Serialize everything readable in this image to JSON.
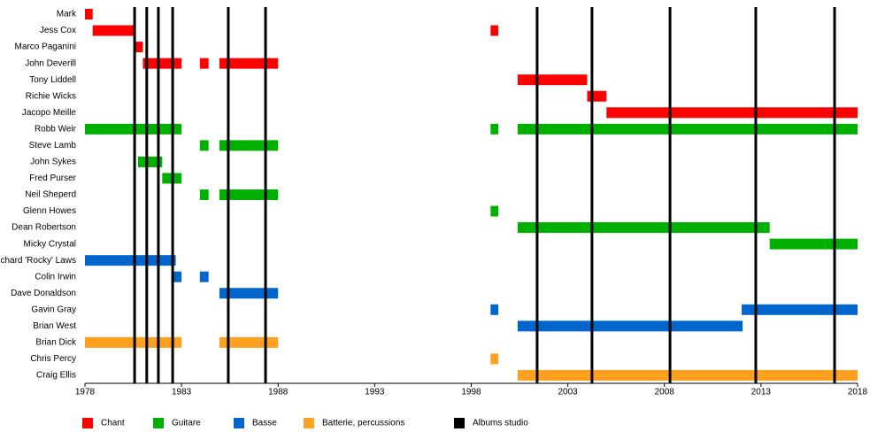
{
  "chart_data": {
    "type": "timeline",
    "categories": [
      "Mark",
      "Jess Cox",
      "Marco Paganini",
      "John Deverill",
      "Tony Liddell",
      "Richie Wicks",
      "Jacopo Meille",
      "Robb Weir",
      "Steve Lamb",
      "John Sykes",
      "Fred Purser",
      "Neil Sheperd",
      "Glenn Howes",
      "Dean Robertson",
      "Micky Crystal",
      "Richard 'Rocky' Laws",
      "Colin Irwin",
      "Dave Donaldson",
      "Gavin Gray",
      "Brian West",
      "Brian Dick",
      "Chris Percy",
      "Craig Ellis"
    ],
    "series": [
      {
        "name": "Chant",
        "color": "#ff0000",
        "values": [
          [
            [
              1978,
              1978.4
            ]
          ],
          [
            [
              1978.4,
              1980.6
            ],
            [
              1999,
              1999.4
            ]
          ],
          [
            [
              1980.6,
              1981
            ]
          ],
          [
            [
              1981,
              1983
            ],
            [
              1983.95,
              1984.4
            ],
            [
              1984.96,
              1988
            ]
          ],
          [
            [
              2000.4,
              2004
            ]
          ],
          [
            [
              2004,
              2005
            ]
          ],
          [
            [
              2005,
              2018
            ]
          ],
          null,
          null,
          null,
          null,
          null,
          null,
          null,
          null,
          null,
          null,
          null,
          null,
          null,
          null,
          null,
          null
        ]
      },
      {
        "name": "Guitare",
        "color": "#00b000",
        "values": [
          null,
          null,
          null,
          null,
          null,
          null,
          null,
          [
            [
              1978,
              1983
            ],
            [
              1999,
              1999.4
            ],
            [
              2000.4,
              2018
            ]
          ],
          [
            [
              1983.95,
              1984.4
            ],
            [
              1984.96,
              1988
            ]
          ],
          [
            [
              1980.75,
              1982
            ]
          ],
          [
            [
              1982,
              1983
            ]
          ],
          [
            [
              1983.95,
              1984.4
            ],
            [
              1984.96,
              1988
            ]
          ],
          [
            [
              1999,
              1999.4
            ]
          ],
          [
            [
              2000.4,
              2013.45
            ]
          ],
          [
            [
              2013.45,
              2018
            ]
          ],
          null,
          null,
          null,
          null,
          null,
          null,
          null,
          null
        ]
      },
      {
        "name": "Basse",
        "color": "#0066cc",
        "values": [
          null,
          null,
          null,
          null,
          null,
          null,
          null,
          null,
          null,
          null,
          null,
          null,
          null,
          null,
          null,
          [
            [
              1978,
              1982.7
            ]
          ],
          [
            [
              1982.6,
              1983
            ],
            [
              1983.95,
              1984.4
            ]
          ],
          [
            [
              1984.96,
              1988
            ]
          ],
          [
            [
              1999,
              1999.4
            ],
            [
              2012,
              2018
            ]
          ],
          [
            [
              2000.4,
              2012.05
            ]
          ],
          null,
          null,
          null
        ]
      },
      {
        "name": "Batterie, percussions",
        "color": "#ffa020",
        "values": [
          null,
          null,
          null,
          null,
          null,
          null,
          null,
          null,
          null,
          null,
          null,
          null,
          null,
          null,
          null,
          null,
          null,
          null,
          null,
          null,
          [
            [
              1978,
              1983
            ],
            [
              1984.96,
              1988
            ]
          ],
          [
            [
              1999,
              1999.4
            ]
          ],
          [
            [
              2000.4,
              2018
            ]
          ]
        ]
      },
      {
        "name": "Albums studio",
        "color": "#000000",
        "x": [
          1980.57,
          1981.2,
          1981.8,
          1982.54,
          1985.42,
          1987.35,
          2001.41,
          2004.25,
          2008.29,
          2012.73,
          2016.81
        ]
      }
    ],
    "xlim": [
      1978,
      2018
    ],
    "xticks": [
      1978,
      1983,
      1988,
      1993,
      1998,
      2003,
      2008,
      2013,
      2018
    ]
  }
}
